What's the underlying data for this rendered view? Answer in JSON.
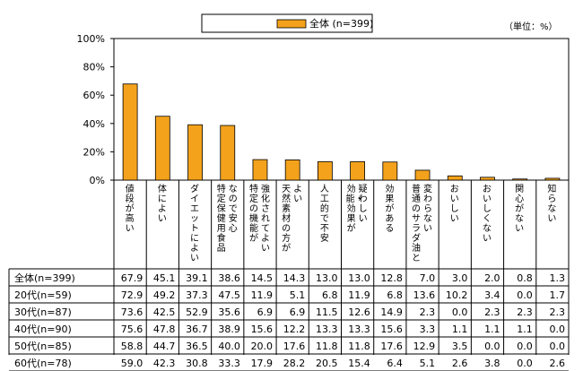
{
  "chart_data": {
    "type": "bar",
    "unit_note": "（単位：%）",
    "ylim": [
      0,
      100
    ],
    "yticks": [
      "0%",
      "20%",
      "40%",
      "60%",
      "80%",
      "100%"
    ],
    "legend": {
      "label": "全体 (n=399)",
      "position": "top-center"
    },
    "bar_color": "#F4A21C",
    "categories": [
      "値段が高い",
      "体によい",
      "ダイエットによい",
      "特定保健用食品なので安心",
      "特定の機能が強化されてよい",
      "天然素材の方がよい",
      "人工的で不安",
      "効能・効果が疑わしい",
      "効果がある",
      "普通のサラダ油と変わらない",
      "おいしい",
      "おいしくない",
      "関心がない",
      "知らない"
    ],
    "series": [
      {
        "name": "全体 (n=399)",
        "values": [
          67.9,
          45.1,
          39.1,
          38.6,
          14.5,
          14.3,
          13.0,
          13.0,
          12.8,
          7.0,
          3.0,
          2.0,
          0.8,
          1.3
        ]
      },
      {
        "name": "20代 (n=59)",
        "values": [
          72.9,
          49.2,
          37.3,
          47.5,
          11.9,
          5.1,
          6.8,
          11.9,
          6.8,
          13.6,
          10.2,
          3.4,
          0.0,
          1.7
        ]
      },
      {
        "name": "30代 (n=87)",
        "values": [
          73.6,
          42.5,
          52.9,
          35.6,
          6.9,
          6.9,
          11.5,
          12.6,
          14.9,
          2.3,
          0.0,
          2.3,
          2.3,
          2.3
        ]
      },
      {
        "name": "40代 (n=90)",
        "values": [
          75.6,
          47.8,
          36.7,
          38.9,
          15.6,
          12.2,
          13.3,
          13.3,
          15.6,
          3.3,
          1.1,
          1.1,
          1.1,
          0.0
        ]
      },
      {
        "name": "50代 (n=85)",
        "values": [
          58.8,
          44.7,
          36.5,
          40.0,
          20.0,
          17.6,
          11.8,
          11.8,
          17.6,
          12.9,
          3.5,
          0.0,
          0.0,
          0.0
        ]
      },
      {
        "name": "60代 (n=78)",
        "values": [
          59.0,
          42.3,
          30.8,
          33.3,
          17.9,
          28.2,
          20.5,
          15.4,
          6.4,
          5.1,
          2.6,
          3.8,
          0.0,
          2.6
        ]
      }
    ]
  }
}
